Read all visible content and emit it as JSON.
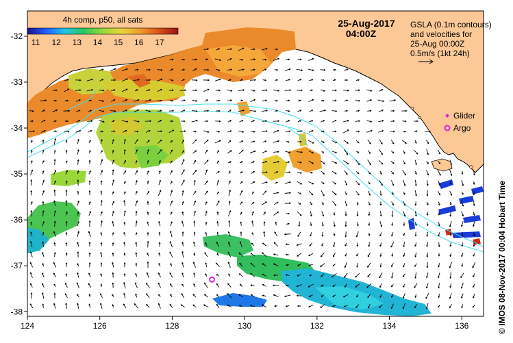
{
  "map": {
    "lon_range": [
      124,
      136.6
    ],
    "lat_range": [
      -38.1,
      -31.45
    ],
    "x_ticks": [
      124,
      126,
      128,
      130,
      132,
      134,
      136
    ],
    "y_ticks": [
      -32,
      -33,
      -34,
      -35,
      -36,
      -37,
      -38
    ],
    "x_tick_labels": [
      "124",
      "126",
      "128",
      "130",
      "132",
      "134",
      "136"
    ],
    "y_tick_labels": [
      "-32",
      "-33",
      "-34",
      "-35",
      "-36",
      "-37",
      "-38"
    ],
    "land_color": "#fcc896",
    "ocean_color": "#ffffff",
    "contour_color": "#44ddee",
    "arrow_color": "#000000"
  },
  "colorbar": {
    "title": "4h comp, p50, all sats",
    "ticks": [
      "11",
      "12",
      "13",
      "14",
      "15",
      "16",
      "17"
    ],
    "range": [
      10.6,
      17.9
    ],
    "gradient_colors": [
      "#1a0f8c",
      "#2060ff",
      "#22c6e6",
      "#28c85c",
      "#9ad83a",
      "#e8d63a",
      "#f09a2a",
      "#d8501a",
      "#9a1212"
    ]
  },
  "header": {
    "date": "25-Aug-2017",
    "time": "04:00Z"
  },
  "info": {
    "line1": "GSLA (0.1m contours)",
    "line2": "and velocities for",
    "line3": "25-Aug 00:00Z",
    "line4": "0.5m/s (1kt 24h)"
  },
  "legend": {
    "glider_label": "Glider",
    "argo_label": "Argo",
    "glider_color": "#dd22dd",
    "argo_color": "#dd22dd"
  },
  "markers": {
    "argo_lon": 129.1,
    "argo_lat": -37.3
  },
  "credit": "© IMOS 08-Nov-2017 00:04 Hobart Time"
}
